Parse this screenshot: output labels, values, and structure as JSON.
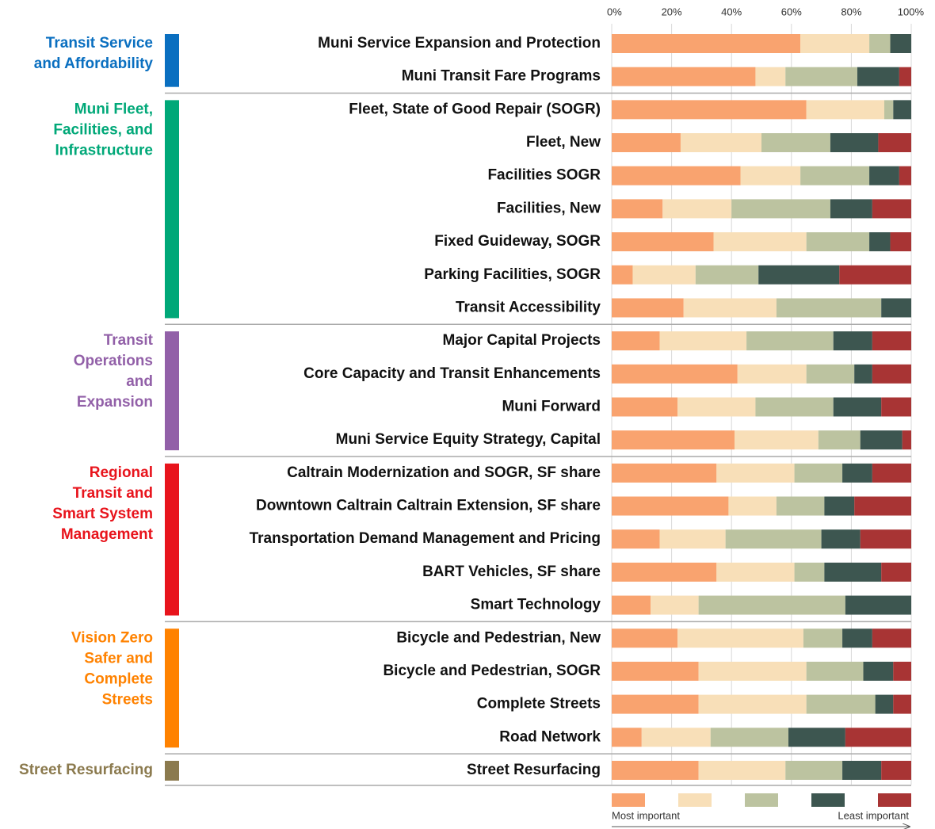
{
  "chart_data": {
    "type": "stacked-bar-horizontal",
    "xlim": [
      0,
      100
    ],
    "xticks": [
      {
        "value": 0,
        "label": "0%"
      },
      {
        "value": 20,
        "label": "20%"
      },
      {
        "value": 40,
        "label": "40%"
      },
      {
        "value": 60,
        "label": "60%"
      },
      {
        "value": 80,
        "label": "80%"
      },
      {
        "value": 100,
        "label": "100%"
      }
    ],
    "grid": true,
    "groups": [
      {
        "label": [
          "Transit Service",
          "and Affordability"
        ],
        "color": "#0a6fc0",
        "categories": [
          "Muni Service Expansion and Protection",
          "Muni Transit Fare Programs"
        ]
      },
      {
        "label": [
          "Muni Fleet,",
          "Facilities, and",
          "Infrastructure"
        ],
        "color": "#00a878",
        "categories": [
          "Fleet, State of Good Repair (SOGR)",
          "Fleet, New",
          "Facilities SOGR",
          "Facilities, New",
          "Fixed Guideway, SOGR",
          "Parking Facilities, SOGR",
          "Transit Accessibility"
        ]
      },
      {
        "label": [
          "Transit",
          "Operations",
          "and",
          "Expansion"
        ],
        "color": "#9260a8",
        "categories": [
          "Major Capital Projects",
          "Core Capacity and Transit Enhancements",
          "Muni Forward",
          "Muni Service Equity Strategy, Capital"
        ]
      },
      {
        "label": [
          "Regional",
          "Transit and",
          "Smart System",
          "Management"
        ],
        "color": "#e8141c",
        "categories": [
          "Caltrain Modernization and SOGR, SF share",
          "Downtown Caltrain Caltrain Extension, SF share",
          "Transportation Demand Management and Pricing",
          "BART Vehicles, SF share",
          "Smart Technology"
        ]
      },
      {
        "label": [
          "Vision Zero",
          "Safer and",
          "Complete",
          "Streets"
        ],
        "color": "#ff8200",
        "categories": [
          "Bicycle and Pedestrian, New",
          "Bicycle and Pedestrian, SOGR",
          "Complete Streets",
          "Road Network"
        ]
      },
      {
        "label": [
          "Street Resurfacing"
        ],
        "color": "#8b7a4e",
        "categories": [
          "Street Resurfacing"
        ]
      }
    ],
    "series": [
      {
        "color": "#f9a36f",
        "values": [
          63,
          48,
          65,
          23,
          43,
          17,
          34,
          7,
          24,
          16,
          42,
          22,
          41,
          35,
          39,
          16,
          35,
          13,
          22,
          29,
          29,
          10,
          29
        ]
      },
      {
        "color": "#f8dfb8",
        "values": [
          23,
          10,
          26,
          27,
          20,
          23,
          31,
          21,
          31,
          29,
          23,
          26,
          28,
          26,
          16,
          22,
          26,
          16,
          42,
          36,
          36,
          23,
          29
        ]
      },
      {
        "color": "#bcc3a0",
        "values": [
          7,
          24,
          3,
          23,
          23,
          33,
          21,
          21,
          35,
          29,
          16,
          26,
          14,
          16,
          16,
          32,
          10,
          49,
          13,
          19,
          23,
          26,
          19
        ]
      },
      {
        "color": "#3d5650",
        "values": [
          7,
          14,
          6,
          16,
          10,
          14,
          7,
          27,
          10,
          13,
          6,
          16,
          14,
          10,
          10,
          13,
          19,
          22,
          10,
          10,
          6,
          19,
          13
        ]
      },
      {
        "color": "#a83434",
        "values": [
          0,
          4,
          0,
          11,
          4,
          13,
          7,
          24,
          0,
          13,
          13,
          10,
          3,
          13,
          19,
          17,
          10,
          0,
          13,
          6,
          6,
          22,
          10
        ]
      }
    ],
    "legend_labels": [
      "Most important",
      "Least important"
    ]
  }
}
